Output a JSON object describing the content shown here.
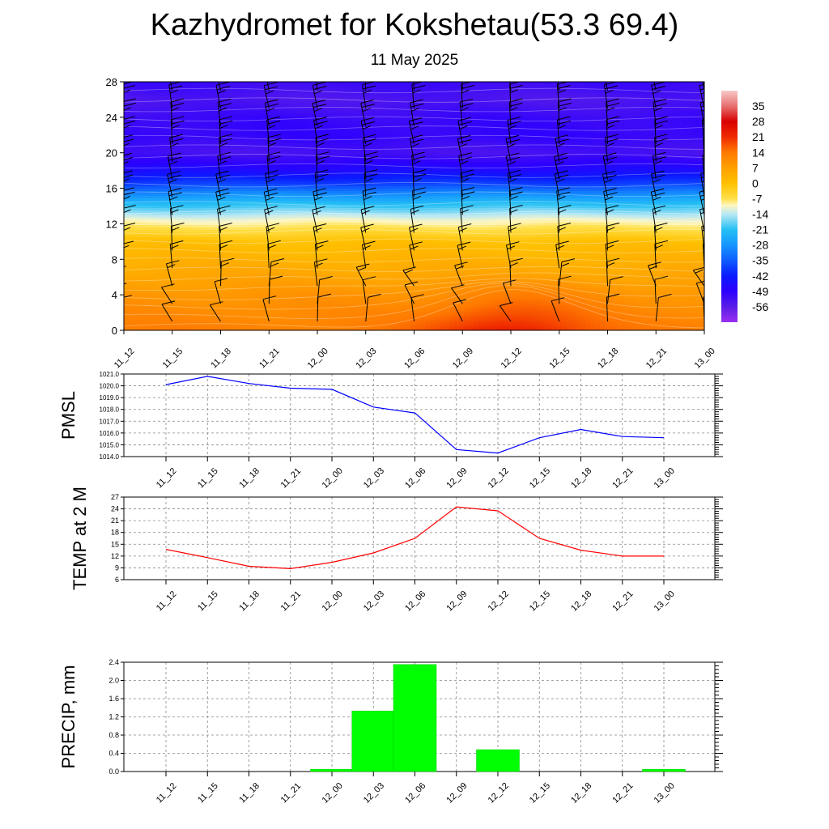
{
  "title": "Kazhydromet for Kokshetau(53.3 69.4)",
  "subtitle": "11 May 2025",
  "time_labels": [
    "11_12",
    "11_15",
    "11_18",
    "11_21",
    "12_00",
    "12_03",
    "12_06",
    "12_09",
    "12_12",
    "12_15",
    "12_18",
    "12_21",
    "13_00"
  ],
  "colors": {
    "pmsl_line": "#0000ff",
    "temp_line": "#ff0000",
    "precip_bar": "#00ff00",
    "grid": "#888888",
    "wind_barb": "#000000"
  },
  "chart_data": [
    {
      "type": "heatmap",
      "name": "cross-section",
      "x_categories": [
        "11_12",
        "11_15",
        "11_18",
        "11_21",
        "12_00",
        "12_03",
        "12_06",
        "12_09",
        "12_12",
        "12_15",
        "12_18",
        "12_21",
        "13_00"
      ],
      "y_ticks": [
        0,
        4,
        8,
        12,
        16,
        20,
        24,
        28
      ],
      "ylim": [
        0,
        28
      ],
      "colorbar": {
        "labels": [
          35,
          28,
          21,
          14,
          7,
          0,
          -7,
          -14,
          -21,
          -28,
          -35,
          -42,
          -49,
          -56
        ],
        "range": [
          -63,
          42
        ],
        "stops": [
          {
            "v": -63,
            "c": "#9b2ff0"
          },
          {
            "v": -56,
            "c": "#5a1ee8"
          },
          {
            "v": -49,
            "c": "#2d00ff"
          },
          {
            "v": -42,
            "c": "#0a1aff"
          },
          {
            "v": -35,
            "c": "#0f5cff"
          },
          {
            "v": -28,
            "c": "#1596ff"
          },
          {
            "v": -21,
            "c": "#25c0f4"
          },
          {
            "v": -14,
            "c": "#b8e8f4"
          },
          {
            "v": -10,
            "c": "#fff6c0"
          },
          {
            "v": -7,
            "c": "#ffe04a"
          },
          {
            "v": 0,
            "c": "#ffc000"
          },
          {
            "v": 7,
            "c": "#ffa000"
          },
          {
            "v": 14,
            "c": "#ff7a00"
          },
          {
            "v": 21,
            "c": "#f02a00"
          },
          {
            "v": 28,
            "c": "#d80000"
          },
          {
            "v": 35,
            "c": "#e87070"
          },
          {
            "v": 42,
            "c": "#f7c8c8"
          }
        ]
      },
      "profile": [
        {
          "h": 0,
          "v": 13
        },
        {
          "h": 2,
          "v": 11
        },
        {
          "h": 4,
          "v": 9
        },
        {
          "h": 6,
          "v": 6
        },
        {
          "h": 8,
          "v": 3
        },
        {
          "h": 10,
          "v": 0
        },
        {
          "h": 11.5,
          "v": -7
        },
        {
          "h": 12.5,
          "v": -11
        },
        {
          "h": 13.5,
          "v": -17
        },
        {
          "h": 14.5,
          "v": -23
        },
        {
          "h": 15.5,
          "v": -30
        },
        {
          "h": 16.5,
          "v": -38
        },
        {
          "h": 18,
          "v": -46
        },
        {
          "h": 20,
          "v": -53
        },
        {
          "h": 22,
          "v": -50
        },
        {
          "h": 24,
          "v": -51
        },
        {
          "h": 26,
          "v": -54
        },
        {
          "h": 28,
          "v": -51
        }
      ],
      "warm_anomaly": {
        "x_center": 8,
        "x_spread": 1.7,
        "h_top": 6.5,
        "amplitude": 10
      }
    },
    {
      "type": "line",
      "name": "PMSL",
      "ylabel": "PMSL",
      "categories": [
        "11_12",
        "11_15",
        "11_18",
        "11_21",
        "12_00",
        "12_03",
        "12_06",
        "12_09",
        "12_12",
        "12_15",
        "12_18",
        "12_21",
        "13_00"
      ],
      "values": [
        1020.1,
        1020.8,
        1020.2,
        1019.8,
        1019.7,
        1018.2,
        1017.7,
        1014.6,
        1014.3,
        1015.6,
        1016.3,
        1015.7,
        1015.6
      ],
      "ylim": [
        1014,
        1021
      ],
      "y_ticks": [
        1014.0,
        1015.0,
        1016.0,
        1017.0,
        1018.0,
        1019.0,
        1020.0,
        1021.0
      ],
      "y_tick_labels": [
        "1014.0",
        "1015.0",
        "1016.0",
        "1017.0",
        "1018.0",
        "1019.0",
        "1020.0",
        "1021.0"
      ],
      "grid": true
    },
    {
      "type": "line",
      "name": "TEMP",
      "ylabel": "TEMP at 2 M",
      "categories": [
        "11_12",
        "11_15",
        "11_18",
        "11_21",
        "12_00",
        "12_03",
        "12_06",
        "12_09",
        "12_12",
        "12_15",
        "12_18",
        "12_21",
        "13_00"
      ],
      "values": [
        13.7,
        11.6,
        9.4,
        8.8,
        10.4,
        12.8,
        16.5,
        24.5,
        23.5,
        16.5,
        13.5,
        12.0,
        12.0
      ],
      "ylim": [
        6,
        27
      ],
      "y_ticks": [
        6,
        9,
        12,
        15,
        18,
        21,
        24,
        27
      ],
      "y_tick_labels": [
        "6",
        "9",
        "12",
        "15",
        "18",
        "21",
        "24",
        "27"
      ],
      "grid": true
    },
    {
      "type": "bar",
      "name": "PRECIP",
      "ylabel": "PRECIP, mm",
      "categories": [
        "11_12",
        "11_15",
        "11_18",
        "11_21",
        "12_00",
        "12_03",
        "12_06",
        "12_09",
        "12_12",
        "12_15",
        "12_18",
        "12_21",
        "13_00"
      ],
      "values": [
        0,
        0,
        0,
        0,
        0.05,
        1.33,
        2.35,
        0,
        0.48,
        0,
        0,
        0,
        0.05
      ],
      "ylim": [
        0,
        2.4
      ],
      "y_ticks": [
        0.0,
        0.4,
        0.8,
        1.2,
        1.6,
        2.0,
        2.4
      ],
      "y_tick_labels": [
        "0.0",
        "0.4",
        "0.8",
        "1.2",
        "1.6",
        "2.0",
        "2.4"
      ],
      "grid": true
    }
  ]
}
